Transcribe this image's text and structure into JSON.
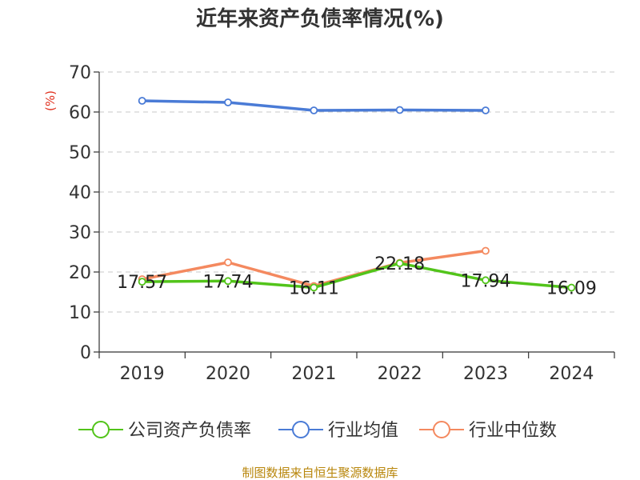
{
  "chart_data": {
    "type": "line",
    "title": "近年来资产负债率情况(%)",
    "ylabel": "(%)",
    "xlabel": "",
    "ylim": [
      0,
      70
    ],
    "yticks": [
      0,
      10,
      20,
      30,
      40,
      50,
      60,
      70
    ],
    "categories": [
      "2019",
      "2020",
      "2021",
      "2022",
      "2023",
      "2024"
    ],
    "grid": "horizontal dashed",
    "legend_position": "bottom",
    "series": [
      {
        "name": "公司资产负债率",
        "color": "#52c41a",
        "values": [
          17.57,
          17.74,
          16.11,
          22.18,
          17.94,
          16.09
        ],
        "labels": [
          "17.57",
          "17.74",
          "16.11",
          "22.18",
          "17.94",
          "16.09"
        ]
      },
      {
        "name": "行业均值",
        "color": "#4a7bd6",
        "values": [
          62.8,
          62.4,
          60.4,
          60.5,
          60.4,
          null
        ]
      },
      {
        "name": "行业中位数",
        "color": "#f4895f",
        "values": [
          18.2,
          22.4,
          16.5,
          22.3,
          25.3,
          null
        ]
      }
    ],
    "source": "制图数据来自恒生聚源数据库"
  }
}
